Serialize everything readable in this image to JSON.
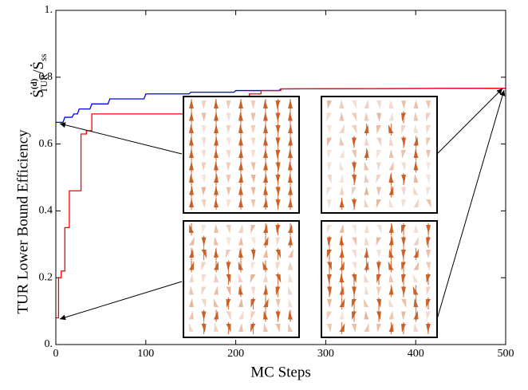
{
  "chart_data": {
    "type": "line",
    "x_label": "MC Steps",
    "y_label": "TUR Lower Bound Efficiency",
    "annotation": {
      "symbol": "Ṡ",
      "sup": "(d)",
      "sub": "TUR",
      "divider": "/Ṡ",
      "sub2": "ss"
    },
    "xlim": [
      0,
      500
    ],
    "ylim": [
      0,
      1
    ],
    "xticks": [
      0,
      100,
      200,
      300,
      400,
      500
    ],
    "yticks": [
      {
        "value": 0,
        "label": "0."
      },
      0.2,
      0.4,
      0.6,
      0.8,
      {
        "value": 1,
        "label": "1."
      }
    ],
    "series": [
      {
        "name": "blue",
        "color": "#0000ff",
        "x": [
          0,
          8,
          10,
          18,
          20,
          24,
          26,
          38,
          40,
          58,
          60,
          98,
          100,
          148,
          150,
          198,
          200,
          248,
          250,
          500
        ],
        "values": [
          0.665,
          0.665,
          0.68,
          0.68,
          0.69,
          0.69,
          0.705,
          0.705,
          0.72,
          0.72,
          0.735,
          0.735,
          0.75,
          0.75,
          0.755,
          0.755,
          0.76,
          0.76,
          0.765,
          0.767
        ]
      },
      {
        "name": "red",
        "color": "#ff0000",
        "x": [
          0,
          3,
          3,
          6,
          6,
          10,
          10,
          15,
          15,
          28,
          28,
          34,
          34,
          40,
          40,
          155,
          155,
          162,
          162,
          215,
          215,
          228,
          228,
          250,
          250,
          500
        ],
        "values": [
          0.08,
          0.08,
          0.2,
          0.2,
          0.22,
          0.22,
          0.35,
          0.35,
          0.46,
          0.46,
          0.63,
          0.63,
          0.64,
          0.64,
          0.69,
          0.69,
          0.73,
          0.73,
          0.74,
          0.74,
          0.75,
          0.75,
          0.76,
          0.76,
          0.765,
          0.767
        ]
      }
    ]
  }
}
